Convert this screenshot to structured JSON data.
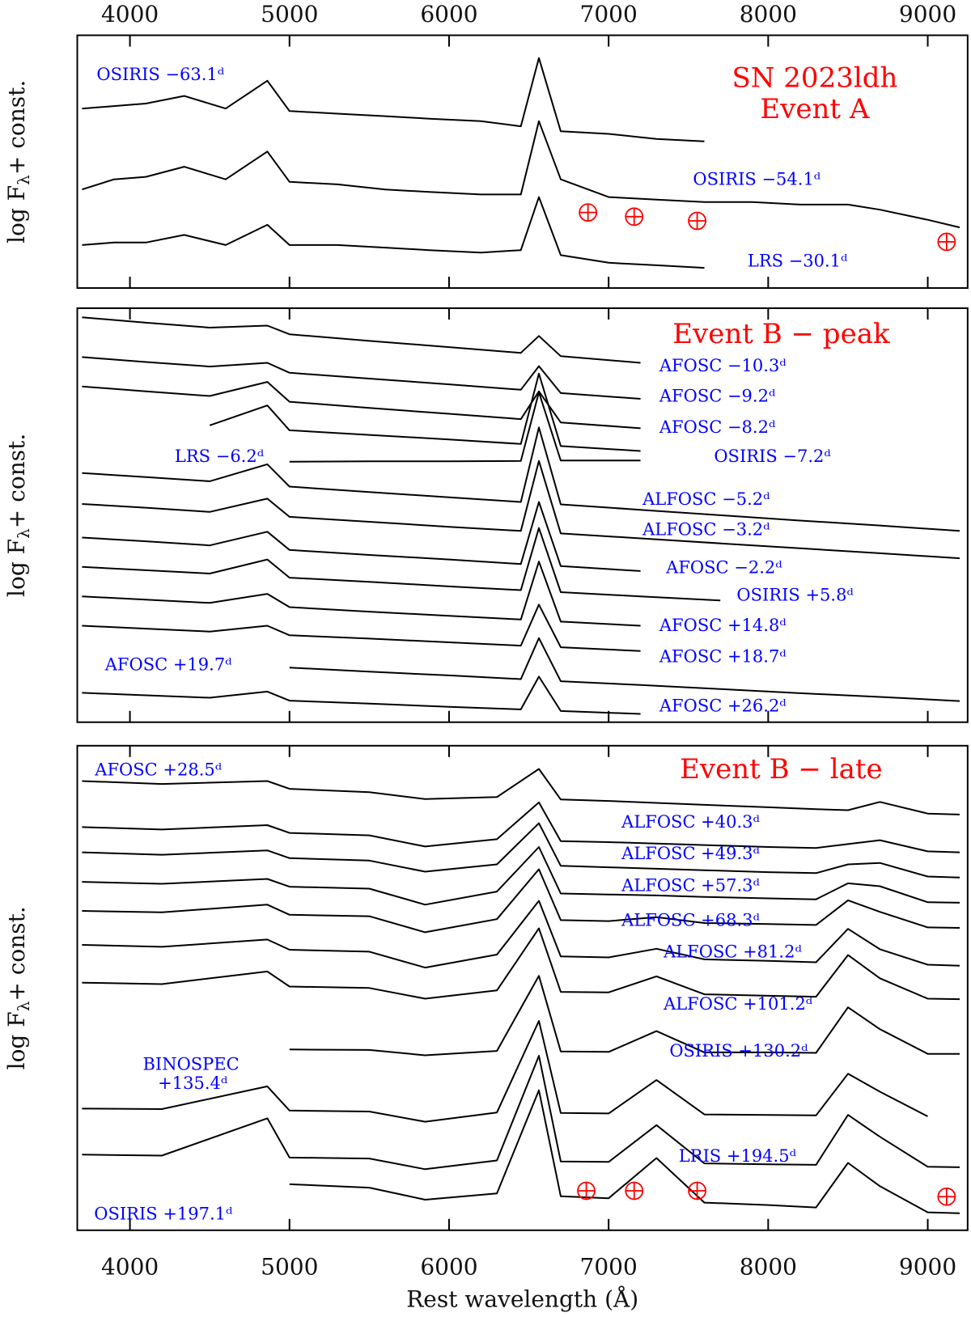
{
  "chart_data": [
    {
      "type": "line",
      "title": "SN 2023ldh",
      "subtitle": "Event A",
      "title_color": "#ff0000",
      "label_color": "#0000ff",
      "y_label": "log Fλ+ const.",
      "xlim": [
        3670,
        9250
      ],
      "xticks": [
        4000,
        5000,
        6000,
        7000,
        8000,
        9000
      ],
      "ylim": [
        0,
        100
      ],
      "x": [
        3700,
        3900,
        4100,
        4340,
        4600,
        4861,
        5000,
        5300,
        5600,
        5876,
        6200,
        6450,
        6563,
        6700,
        7000,
        7300,
        7600,
        7900,
        8200,
        8500,
        8700,
        9000,
        9200
      ],
      "series": [
        {
          "name": "OSIRIS −63.1ᵈ",
          "color": "#000000",
          "values": [
            71,
            72,
            73,
            76,
            71,
            82,
            70,
            69,
            68,
            67,
            66,
            64,
            91,
            62,
            61,
            59,
            58,
            null,
            null,
            null,
            null,
            null,
            null
          ]
        },
        {
          "name": "OSIRIS −54.1ᵈ",
          "color": "#000000",
          "values": [
            39,
            43,
            44,
            48,
            43,
            54,
            42,
            41,
            39,
            38,
            37,
            37,
            66,
            43,
            36,
            35,
            34,
            34,
            33,
            33,
            31,
            27,
            24
          ]
        },
        {
          "name": "LRS −30.1ᵈ",
          "color": "#000000",
          "values": [
            17,
            18,
            18,
            21,
            17,
            25,
            17,
            17,
            16,
            15,
            14,
            15,
            36,
            13,
            10,
            9,
            8,
            null,
            null,
            null,
            null,
            null,
            null
          ]
        }
      ]
    },
    {
      "type": "line",
      "title": "Event B − peak",
      "title_color": "#ff0000",
      "label_color": "#0000ff",
      "y_label": "log Fλ+ const.",
      "xlim": [
        3670,
        9250
      ],
      "xticks": [
        4000,
        5000,
        6000,
        7000,
        8000,
        9000
      ],
      "ylim": [
        0,
        100
      ],
      "x": [
        3700,
        4100,
        4500,
        4861,
        5000,
        5500,
        6000,
        6450,
        6563,
        6700,
        7200,
        7700,
        8200,
        8700,
        9200
      ],
      "series": [
        {
          "name": "AFOSC −10.3ᵈ",
          "color": "#000000",
          "values": [
            97.8,
            96.5,
            95.3,
            95.8,
            93.7,
            92.1,
            90.6,
            89.2,
            93.3,
            88.4,
            86.8,
            null,
            null,
            null,
            null
          ]
        },
        {
          "name": "AFOSC −9.2ᵈ",
          "color": "#000000",
          "values": [
            88.2,
            87.0,
            85.9,
            86.8,
            84.4,
            83.0,
            81.6,
            80.3,
            86.0,
            79.5,
            78.1,
            null,
            null,
            null,
            null
          ]
        },
        {
          "name": "AFOSC −8.2ᵈ",
          "color": "#000000",
          "values": [
            81.1,
            79.9,
            78.8,
            82.2,
            77.4,
            75.9,
            74.5,
            73.2,
            79.9,
            72.4,
            71.0,
            null,
            null,
            null,
            null
          ]
        },
        {
          "name": "OSIRIS −7.2ᵈ",
          "color": "#000000",
          "values": [
            null,
            null,
            71.7,
            76.5,
            70.5,
            69.4,
            68.3,
            67.2,
            84.2,
            66.7,
            65.5,
            null,
            null,
            null,
            null
          ]
        },
        {
          "name": "LRS −6.2ᵈ",
          "color": "#000000",
          "values": [
            null,
            null,
            null,
            null,
            62.9,
            63.0,
            63.0,
            63.1,
            79.7,
            63.2,
            63.2,
            null,
            null,
            null,
            null
          ]
        },
        {
          "name": "ALFOSC −5.2ᵈ",
          "color": "#000000",
          "values": [
            60.2,
            59.2,
            58.2,
            62.3,
            56.9,
            55.6,
            54.3,
            53.2,
            71.2,
            52.6,
            51.3,
            50.0,
            48.7,
            47.5,
            46.2
          ]
        },
        {
          "name": "ALFOSC −3.2ᵈ",
          "color": "#000000",
          "values": [
            52.7,
            51.8,
            50.8,
            54.0,
            49.6,
            48.4,
            47.2,
            46.2,
            63.1,
            45.6,
            44.4,
            43.2,
            42.0,
            40.8,
            39.6
          ]
        },
        {
          "name": "AFOSC −2.2ᵈ",
          "color": "#000000",
          "values": [
            44.6,
            43.7,
            42.7,
            46.0,
            41.6,
            40.4,
            39.3,
            38.2,
            53.2,
            37.7,
            36.5,
            null,
            null,
            null,
            null
          ]
        },
        {
          "name": "OSIRIS +5.8ᵈ",
          "color": "#000000",
          "values": [
            37.5,
            36.7,
            35.9,
            39.3,
            34.9,
            33.9,
            32.8,
            31.9,
            46.9,
            31.4,
            30.4,
            29.4,
            null,
            null,
            null
          ]
        },
        {
          "name": "AFOSC +14.8ᵈ",
          "color": "#000000",
          "values": [
            30.4,
            29.6,
            28.8,
            31.0,
            27.8,
            26.7,
            25.7,
            24.8,
            38.8,
            24.3,
            23.3,
            null,
            null,
            null,
            null
          ]
        },
        {
          "name": "AFOSC +18.7ᵈ",
          "color": "#000000",
          "values": [
            23.3,
            22.6,
            21.9,
            23.3,
            21.0,
            20.2,
            19.3,
            18.5,
            28.4,
            18.1,
            17.2,
            null,
            null,
            null,
            null
          ]
        },
        {
          "name": "AFOSC +19.7ᵈ",
          "color": "#000000",
          "values": [
            null,
            null,
            null,
            null,
            13.2,
            12.2,
            11.3,
            10.4,
            20.3,
            9.9,
            9.0,
            8.0,
            7.0,
            6.1,
            5.1
          ]
        },
        {
          "name": "AFOSC +26.2ᵈ",
          "color": "#000000",
          "values": [
            7.1,
            6.5,
            5.9,
            7.4,
            5.2,
            4.5,
            3.7,
            3.1,
            11.0,
            2.7,
            2.0,
            null,
            null,
            null,
            null
          ]
        }
      ]
    },
    {
      "type": "line",
      "title": "Event B − late",
      "title_color": "#ff0000",
      "label_color": "#0000ff",
      "y_label": "log Fλ+ const.",
      "x_label": "Rest wavelength (Å)",
      "xlim": [
        3670,
        9250
      ],
      "xticks": [
        4000,
        5000,
        6000,
        7000,
        8000,
        9000
      ],
      "ylim": [
        0,
        100
      ],
      "x": [
        3700,
        4200,
        4861,
        5000,
        5500,
        5850,
        6300,
        6563,
        6700,
        7000,
        7300,
        7600,
        8000,
        8300,
        8500,
        8700,
        9000,
        9200
      ],
      "series": [
        {
          "name": "AFOSC +28.5ᵈ",
          "color": "#000000",
          "values": [
            92.7,
            92.1,
            92.7,
            91.1,
            90.4,
            89.0,
            89.4,
            95.2,
            88.9,
            88.6,
            88.2,
            87.8,
            87.3,
            86.9,
            86.7,
            88.4,
            86.0,
            85.8
          ]
        },
        {
          "name": "ALFOSC +40.3ᵈ",
          "color": "#000000",
          "values": [
            83.2,
            82.7,
            83.6,
            82.0,
            81.5,
            79.2,
            80.7,
            88.3,
            80.3,
            80.1,
            79.8,
            79.5,
            79.1,
            78.9,
            79.7,
            80.5,
            78.2,
            78.0
          ]
        },
        {
          "name": "ALFOSC +49.3ᵈ",
          "color": "#000000",
          "values": [
            78.0,
            77.5,
            78.4,
            76.8,
            76.3,
            74.0,
            75.5,
            84.0,
            75.2,
            74.9,
            74.6,
            74.3,
            73.9,
            73.7,
            75.5,
            75.8,
            73.0,
            72.8
          ]
        },
        {
          "name": "ALFOSC +57.3ᵈ",
          "color": "#000000",
          "values": [
            71.9,
            71.5,
            72.5,
            70.9,
            70.5,
            67.2,
            69.9,
            79.1,
            69.5,
            69.3,
            69.1,
            68.8,
            68.5,
            68.3,
            71.6,
            71.0,
            67.7,
            67.6
          ]
        },
        {
          "name": "ALFOSC +68.3ᵈ",
          "color": "#000000",
          "values": [
            65.9,
            65.6,
            67.2,
            65.1,
            64.8,
            61.5,
            64.2,
            74.5,
            64.0,
            63.8,
            64.6,
            63.4,
            63.2,
            63.0,
            68.1,
            65.7,
            62.5,
            62.4
          ]
        },
        {
          "name": "ALFOSC +81.2ᵈ",
          "color": "#000000",
          "values": [
            58.9,
            58.5,
            60.0,
            57.9,
            57.5,
            54.2,
            56.9,
            68.0,
            56.5,
            56.3,
            58.1,
            55.9,
            55.6,
            55.3,
            62.2,
            58.0,
            54.8,
            54.6
          ]
        },
        {
          "name": "ALFOSC +101.2ᵈ",
          "color": "#000000",
          "values": [
            51.1,
            50.8,
            53.4,
            50.3,
            50.0,
            47.8,
            49.5,
            62.3,
            49.2,
            49.1,
            52.4,
            48.7,
            48.4,
            48.2,
            56.8,
            52.0,
            47.8,
            47.7
          ]
        },
        {
          "name": "OSIRIS +130.2ᵈ",
          "color": "#000000",
          "values": [
            null,
            null,
            null,
            37.3,
            37.2,
            36.1,
            37.0,
            52.5,
            36.9,
            36.8,
            41.1,
            36.7,
            36.7,
            36.6,
            46.0,
            41.5,
            36.4,
            36.4
          ]
        },
        {
          "name": "BINOSPEC +135.4ᵈ",
          "color": "#000000",
          "values": [
            25.1,
            25.0,
            29.7,
            24.7,
            24.5,
            22.4,
            24.3,
            43.2,
            24.2,
            24.1,
            31.0,
            23.9,
            23.8,
            23.7,
            32.3,
            28.6,
            23.5,
            null
          ]
        },
        {
          "name": "LRIS +194.5ᵈ",
          "color": "#000000",
          "values": [
            15.6,
            15.4,
            23.1,
            15.0,
            14.8,
            12.6,
            14.4,
            36.0,
            14.2,
            14.1,
            21.7,
            13.8,
            13.6,
            13.5,
            23.8,
            19.3,
            13.1,
            13.0
          ]
        },
        {
          "name": "OSIRIS +197.1ᵈ",
          "color": "#000000",
          "values": [
            null,
            null,
            null,
            9.5,
            8.8,
            6.3,
            7.6,
            28.9,
            7.0,
            6.6,
            14.9,
            5.7,
            5.2,
            4.7,
            13.9,
            9.1,
            3.7,
            3.5
          ]
        }
      ]
    }
  ]
}
